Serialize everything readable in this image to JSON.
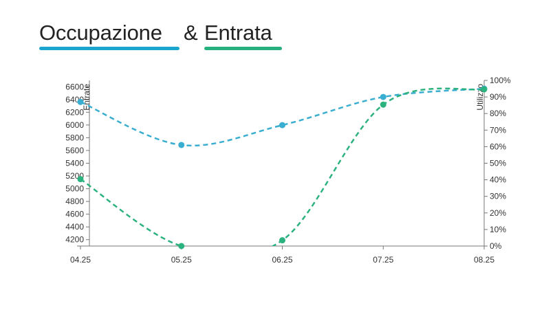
{
  "title": {
    "part1": "Occupazione",
    "amp": "&",
    "part2": "Entrata",
    "part1_color": "#1aa5cf",
    "part2_color": "#26b07d"
  },
  "chart_data": {
    "type": "line",
    "categories": [
      "04.25",
      "05.25",
      "06.25",
      "07.25",
      "08.25"
    ],
    "y_left": {
      "label": "Entrate",
      "min": 4100,
      "max": 6700,
      "ticks": [
        4200,
        4400,
        4600,
        4800,
        5000,
        5200,
        5400,
        5600,
        5800,
        6000,
        6200,
        6400,
        6600
      ]
    },
    "y_right": {
      "label": "Utilizzo",
      "min": 0,
      "max": 100,
      "ticks": [
        "0%",
        "10%",
        "20%",
        "30%",
        "40%",
        "50%",
        "60%",
        "70%",
        "80%",
        "90%",
        "100%"
      ]
    },
    "series": [
      {
        "axis": "right",
        "values": [
          87,
          61,
          73,
          90,
          95
        ],
        "color": "#3aaed0",
        "line_style": "dashed"
      },
      {
        "axis": "left",
        "values": [
          5150,
          4100,
          4190,
          6320,
          6560
        ],
        "color": "#2cb27f",
        "line_style": "dashed"
      }
    ],
    "grid": false,
    "legend": "none"
  }
}
